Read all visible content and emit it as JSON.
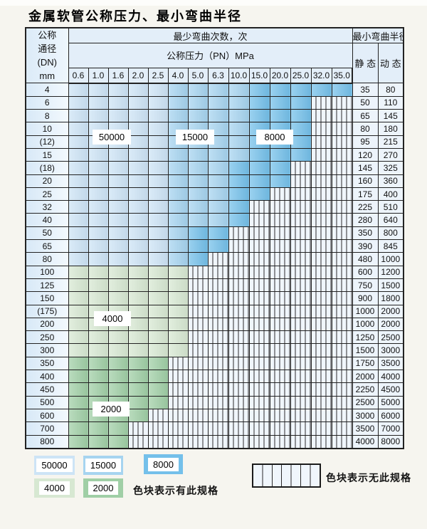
{
  "title": "金属软管公称压力、最小弯曲半径",
  "colors": {
    "cycles_50000": "#cde4f6",
    "cycles_15000": "#a6d4f0",
    "cycles_8000": "#74c0ea",
    "cycles_4000": "#d7e8d2",
    "cycles_2000": "#a0cfa6",
    "hatch_bg": "#f0f6fc",
    "hatch_line": "#2b2b2b",
    "grid": "#222222",
    "header_bg": "#e3eef9",
    "radius_bg": "#edf4fb",
    "page_bg": "#f6f5ef"
  },
  "table": {
    "header": {
      "dn_lines": [
        "公称",
        "通径",
        "(DN)",
        "mm"
      ],
      "cycles_title": "最少弯曲次数，次",
      "pressure_title": "公称压力（PN）MPa",
      "pressures": [
        "0.6",
        "1.0",
        "1.6",
        "2.0",
        "2.5",
        "4.0",
        "5.0",
        "6.3",
        "10.0",
        "15.0",
        "20.0",
        "25.0",
        "32.0",
        "35.0"
      ],
      "radius_title": "最小弯曲半径",
      "static_label": "静 态",
      "dynamic_label": "动 态"
    },
    "cell_code_meaning": {
      "L": "50000次",
      "M": "15000次",
      "D": "8000次",
      "g": "4000次",
      "G": "2000次",
      "x": "无此规格"
    },
    "region_labels": [
      "50000",
      "15000",
      "8000",
      "4000",
      "2000"
    ],
    "rows": [
      {
        "dn": "4",
        "cells": "LLLLLMMMMDDDDD",
        "static": "35",
        "dynamic": "80"
      },
      {
        "dn": "6",
        "cells": "LLLLLMMMMDDDxx",
        "static": "50",
        "dynamic": "110"
      },
      {
        "dn": "8",
        "cells": "LLLLLMMMMDDDxx",
        "static": "65",
        "dynamic": "145"
      },
      {
        "dn": "10",
        "cells": "LLLLLMMMMDDDxx",
        "static": "80",
        "dynamic": "180"
      },
      {
        "dn": "(12)",
        "cells": "LLLLLMMMMDDDxx",
        "static": "95",
        "dynamic": "215"
      },
      {
        "dn": "15",
        "cells": "LLLLLMMMMDDDxx",
        "static": "120",
        "dynamic": "270"
      },
      {
        "dn": "(18)",
        "cells": "LLLLLMMMDDDxxx",
        "static": "145",
        "dynamic": "325"
      },
      {
        "dn": "20",
        "cells": "LLLLLMMMDDDxxx",
        "static": "160",
        "dynamic": "360"
      },
      {
        "dn": "25",
        "cells": "LLLLLMMMDDxxxx",
        "static": "175",
        "dynamic": "400"
      },
      {
        "dn": "32",
        "cells": "LLLLLMMMDxxxxx",
        "static": "225",
        "dynamic": "510"
      },
      {
        "dn": "40",
        "cells": "LLLLLMMMDxxxxx",
        "static": "280",
        "dynamic": "640"
      },
      {
        "dn": "50",
        "cells": "LLLLLMDDxxxxxx",
        "static": "350",
        "dynamic": "800"
      },
      {
        "dn": "65",
        "cells": "LLLLLMDDxxxxxx",
        "static": "390",
        "dynamic": "845"
      },
      {
        "dn": "80",
        "cells": "LLLLLMDxxxxxxx",
        "static": "480",
        "dynamic": "1000"
      },
      {
        "dn": "100",
        "cells": "ggggggxxxxxxxx",
        "static": "600",
        "dynamic": "1200"
      },
      {
        "dn": "125",
        "cells": "ggggggxxxxxxxx",
        "static": "750",
        "dynamic": "1500"
      },
      {
        "dn": "150",
        "cells": "ggggggxxxxxxxx",
        "static": "900",
        "dynamic": "1800"
      },
      {
        "dn": "(175)",
        "cells": "ggggggxxxxxxxx",
        "static": "1000",
        "dynamic": "2000"
      },
      {
        "dn": "200",
        "cells": "ggggggxxxxxxxx",
        "static": "1000",
        "dynamic": "2000"
      },
      {
        "dn": "250",
        "cells": "ggggggxxxxxxxx",
        "static": "1250",
        "dynamic": "2500"
      },
      {
        "dn": "300",
        "cells": "ggggggxxxxxxxx",
        "static": "1500",
        "dynamic": "3000"
      },
      {
        "dn": "350",
        "cells": "GGGGGxxxxxxxxx",
        "static": "1750",
        "dynamic": "3500"
      },
      {
        "dn": "400",
        "cells": "GGGGGxxxxxxxxx",
        "static": "2000",
        "dynamic": "4000"
      },
      {
        "dn": "450",
        "cells": "GGGGGxxxxxxxxx",
        "static": "2250",
        "dynamic": "4500"
      },
      {
        "dn": "500",
        "cells": "GGGGGxxxxxxxxx",
        "static": "2500",
        "dynamic": "5000"
      },
      {
        "dn": "600",
        "cells": "GGGGxxxxxxxxxx",
        "static": "3000",
        "dynamic": "6000"
      },
      {
        "dn": "700",
        "cells": "GGGxxxxxxxxxxx",
        "static": "3500",
        "dynamic": "7000"
      },
      {
        "dn": "800",
        "cells": "GGGxxxxxxxxxxx",
        "static": "4000",
        "dynamic": "8000"
      }
    ]
  },
  "legend": {
    "swatches": [
      {
        "label": "50000",
        "type": "L"
      },
      {
        "label": "15000",
        "type": "M"
      },
      {
        "label": "8000",
        "type": "D"
      },
      {
        "label": "4000",
        "type": "g"
      },
      {
        "label": "2000",
        "type": "G"
      }
    ],
    "available_note": "色块表示有此规格",
    "unavailable_note": "色块表示无此规格"
  }
}
